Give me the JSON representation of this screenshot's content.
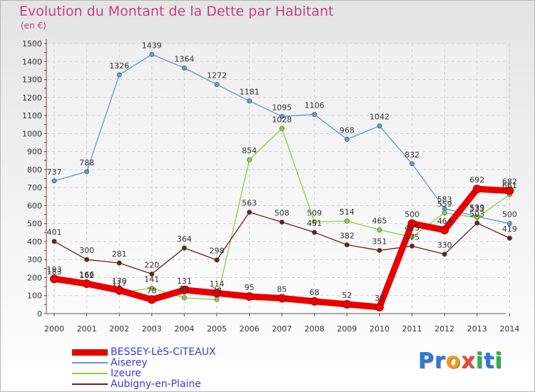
{
  "header": {
    "title": "Evolution du Montant de la Dette par Habitant",
    "subtitle": "(en €)"
  },
  "logo": {
    "text": "Proxiti",
    "letters": [
      {
        "char": "P",
        "color": "#2b7bd6"
      },
      {
        "char": "r",
        "color": "#2b7bd6"
      },
      {
        "char": "o",
        "color": "#f39c12"
      },
      {
        "char": "x",
        "color": "#e74c3c"
      },
      {
        "char": "i",
        "color": "#2bb34a"
      },
      {
        "char": "t",
        "color": "#2b7bd6"
      },
      {
        "char": "i",
        "color": "#2bb34a"
      }
    ]
  },
  "chart_data": {
    "type": "line",
    "x": [
      2000,
      2001,
      2002,
      2003,
      2004,
      2005,
      2006,
      2007,
      2008,
      2009,
      2010,
      2011,
      2012,
      2013,
      2014
    ],
    "ylim": [
      0,
      1500
    ],
    "yticks": [
      0,
      100,
      200,
      300,
      400,
      500,
      600,
      700,
      800,
      900,
      1000,
      1100,
      1200,
      1300,
      1400,
      1500
    ],
    "grid": true,
    "legend_position": "bottom-left",
    "series": [
      {
        "name": "BESSEY-LèS-CiTEAUX",
        "color": "#e80000",
        "values": [
          193,
          166,
          130,
          78,
          131,
          114,
          95,
          85,
          68,
          52,
          36,
          500,
          464,
          692,
          682
        ]
      },
      {
        "name": "Aiserey",
        "color": "#5b9bd5",
        "values": [
          737,
          788,
          1326,
          1439,
          1364,
          1272,
          1181,
          1095,
          1106,
          968,
          1042,
          832,
          583,
          539,
          500
        ]
      },
      {
        "name": "Izeure",
        "color": "#8ccf3f",
        "values": [
          183,
          162,
          117,
          141,
          88,
          78,
          854,
          1028,
          509,
          514,
          465,
          425,
          559,
          533,
          661
        ]
      },
      {
        "name": "Aubigny-en-Plaine",
        "color": "#6b1f1f",
        "values": [
          401,
          300,
          281,
          220,
          364,
          298,
          563,
          508,
          451,
          382,
          351,
          375,
          330,
          503,
          419
        ]
      }
    ]
  }
}
